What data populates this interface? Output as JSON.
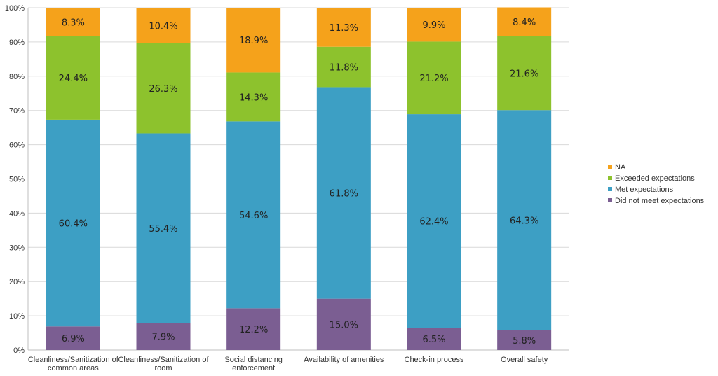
{
  "chart_data": {
    "type": "bar",
    "stacked": true,
    "categories": [
      [
        "Cleanliness/Sanitization of",
        "common areas"
      ],
      [
        "Cleanliness/Sanitization of",
        "room"
      ],
      [
        "Social distancing",
        "enforcement"
      ],
      [
        "Availability of amenities"
      ],
      [
        "Check-in process"
      ],
      [
        "Overall safety"
      ]
    ],
    "series": [
      {
        "name": "Did not meet expectations",
        "color": "#7b5e92",
        "values": [
          6.9,
          7.9,
          12.2,
          15.0,
          6.5,
          5.8
        ],
        "labels": [
          "6.9%",
          "7.9%",
          "12.2%",
          "15.0%",
          "6.5%",
          "5.8%"
        ]
      },
      {
        "name": "Met expectations",
        "color": "#3d9fc4",
        "values": [
          60.4,
          55.4,
          54.6,
          61.8,
          62.4,
          64.3
        ],
        "labels": [
          "60.4%",
          "55.4%",
          "54.6%",
          "61.8%",
          "62.4%",
          "64.3%"
        ]
      },
      {
        "name": "Exceeded expectations",
        "color": "#8dc22d",
        "values": [
          24.4,
          26.3,
          14.3,
          11.8,
          21.2,
          21.6
        ],
        "labels": [
          "24.4%",
          "26.3%",
          "14.3%",
          "11.8%",
          "21.2%",
          "21.6%"
        ]
      },
      {
        "name": "NA",
        "color": "#f5a21b",
        "values": [
          8.3,
          10.4,
          18.9,
          11.3,
          9.9,
          8.4
        ],
        "labels": [
          "8.3%",
          "10.4%",
          "18.9%",
          "11.3%",
          "9.9%",
          "8.4%"
        ]
      }
    ],
    "yticks": [
      "0%",
      "10%",
      "20%",
      "30%",
      "40%",
      "50%",
      "60%",
      "70%",
      "80%",
      "90%",
      "100%"
    ],
    "ylim": [
      0,
      100
    ],
    "grid": true,
    "legend": "right"
  }
}
